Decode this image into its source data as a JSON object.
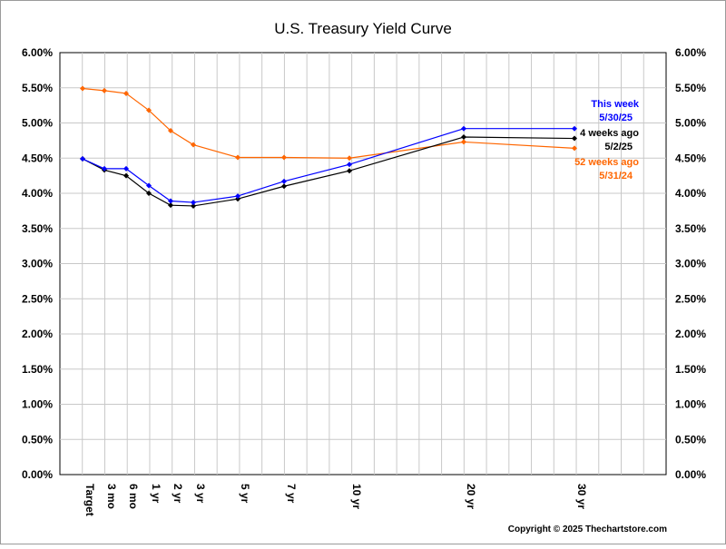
{
  "chart_data": {
    "type": "line",
    "title": "U.S. Treasury Yield Curve",
    "x": [
      "Target",
      "3 mo",
      "6 mo",
      "1 yr",
      "2 yr",
      "3 yr",
      "5 yr",
      "7 yr",
      "10 yr",
      "20 yr",
      "30 yr"
    ],
    "x_positions_years": [
      0,
      0.25,
      0.5,
      1,
      2,
      3,
      5,
      7,
      10,
      20,
      30
    ],
    "ylim": [
      0,
      6
    ],
    "y_ticks": [
      "0.00%",
      "0.50%",
      "1.00%",
      "1.50%",
      "2.00%",
      "2.50%",
      "3.00%",
      "3.50%",
      "4.00%",
      "4.50%",
      "5.00%",
      "5.50%",
      "6.00%"
    ],
    "grid": true,
    "series": [
      {
        "name": "52 weeks ago",
        "date": "5/31/24",
        "color": "#ff6600",
        "values": [
          5.49,
          5.46,
          5.42,
          5.18,
          4.89,
          4.69,
          4.51,
          4.51,
          4.5,
          4.73,
          4.64
        ]
      },
      {
        "name": "4 weeks ago",
        "date": "5/2/25",
        "color": "#000000",
        "values": [
          4.49,
          4.33,
          4.25,
          4.0,
          3.83,
          3.82,
          3.92,
          4.1,
          4.32,
          4.8,
          4.78
        ]
      },
      {
        "name": "This week",
        "date": "5/30/25",
        "color": "#0000ff",
        "values": [
          4.49,
          4.35,
          4.35,
          4.11,
          3.89,
          3.87,
          3.96,
          4.17,
          4.41,
          4.92,
          4.92
        ]
      }
    ]
  },
  "copyright": "Copyright © 2025 Thechartstore.com"
}
